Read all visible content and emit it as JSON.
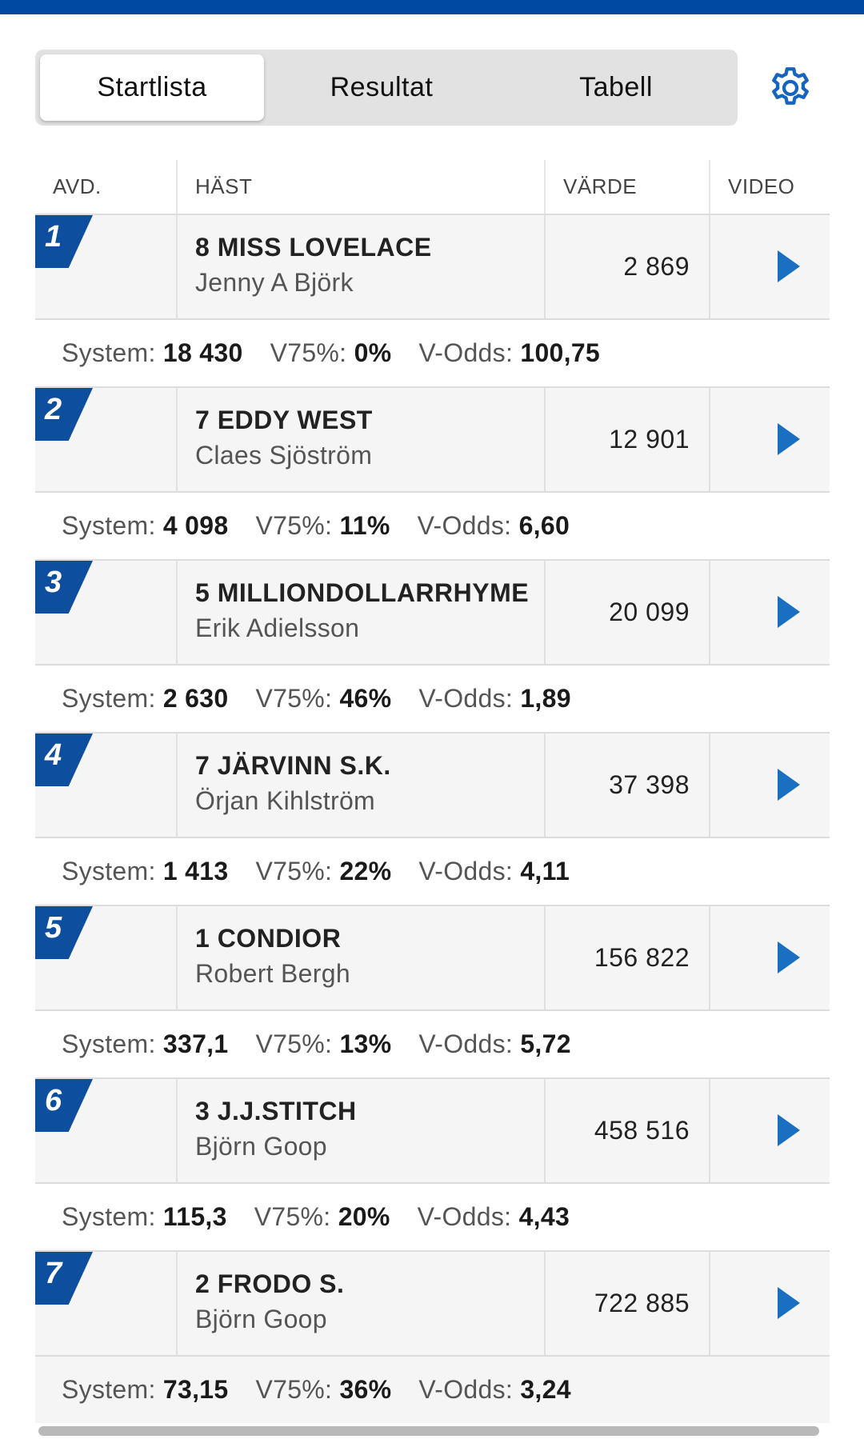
{
  "tabs": [
    {
      "label": "Startlista",
      "active": true
    },
    {
      "label": "Resultat",
      "active": false
    },
    {
      "label": "Tabell",
      "active": false
    }
  ],
  "settings_icon": "gear-icon",
  "columns": {
    "avd": "AVD.",
    "hast": "HÄST",
    "varde": "VÄRDE",
    "video": "VIDEO"
  },
  "stat_labels": {
    "system": "System:",
    "v75": "V75%:",
    "vodds": "V-Odds:"
  },
  "races": [
    {
      "avd": "1",
      "horse": "8 MISS LOVELACE",
      "driver": "Jenny A Björk",
      "value": "2 869",
      "system": "18 430",
      "v75": "0%",
      "vodds": "100,75"
    },
    {
      "avd": "2",
      "horse": "7 EDDY WEST",
      "driver": "Claes Sjöström",
      "value": "12 901",
      "system": "4 098",
      "v75": "11%",
      "vodds": "6,60"
    },
    {
      "avd": "3",
      "horse": "5 MILLIONDOLLARRHYME",
      "driver": "Erik Adielsson",
      "value": "20 099",
      "system": "2 630",
      "v75": "46%",
      "vodds": "1,89"
    },
    {
      "avd": "4",
      "horse": "7 JÄRVINN S.K.",
      "driver": "Örjan Kihlström",
      "value": "37 398",
      "system": "1 413",
      "v75": "22%",
      "vodds": "4,11"
    },
    {
      "avd": "5",
      "horse": "1 CONDIOR",
      "driver": "Robert Bergh",
      "value": "156 822",
      "system": "337,1",
      "v75": "13%",
      "vodds": "5,72"
    },
    {
      "avd": "6",
      "horse": "3 J.J.STITCH",
      "driver": "Björn Goop",
      "value": "458 516",
      "system": "115,3",
      "v75": "20%",
      "vodds": "4,43"
    },
    {
      "avd": "7",
      "horse": "2 FRODO S.",
      "driver": "Björn Goop",
      "value": "722 885",
      "system": "73,15",
      "v75": "36%",
      "vodds": "3,24"
    }
  ],
  "colors": {
    "accent": "#0049a3",
    "badge": "#0d4f9e",
    "play": "#1a6fc2"
  }
}
